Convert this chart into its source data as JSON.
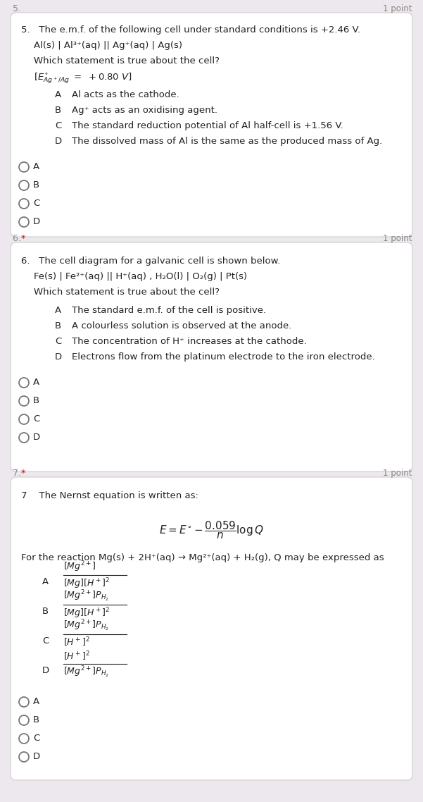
{
  "bg_outer": "#ede8ed",
  "bg_card": "#ffffff",
  "card_edge": "#d8d0d8",
  "text_dark": "#1a1a1a",
  "text_gray": "#888888",
  "red_star": "#cc0000",
  "q5": {
    "header_num": "5.",
    "header_pts": "1 point",
    "line1": "5.   The e.m.f. of the following cell under standard conditions is +2.46 V.",
    "line2": "Al(s) | Al³⁺(aq) || Ag⁺(aq) | Ag(s)",
    "line3": "Which statement is true about the cell?",
    "hint_math": "$[E^{\\circ}_{Ag^+/Ag}\\ =\\ +0.80\\ V]$",
    "opts": [
      [
        "A",
        "Al acts as the cathode."
      ],
      [
        "B",
        "Ag⁺ acts as an oxidising agent."
      ],
      [
        "C",
        "The standard reduction potential of Al half-cell is +1.56 V."
      ],
      [
        "D",
        "The dissolved mass of Al is the same as the produced mass of Ag."
      ]
    ]
  },
  "q6": {
    "header_num": "6.",
    "header_pts": "1 point",
    "star": "*",
    "line1": "6.   The cell diagram for a galvanic cell is shown below.",
    "line2": "Fe(s) | Fe²⁺(aq) || H⁺(aq) , H₂O(l) | O₂(g) | Pt(s)",
    "line3": "Which statement is true about the cell?",
    "opts": [
      [
        "A",
        "The standard e.m.f. of the cell is positive."
      ],
      [
        "B",
        "A colourless solution is observed at the anode."
      ],
      [
        "C",
        "The concentration of H⁺ increases at the cathode."
      ],
      [
        "D",
        "Electrons flow from the platinum electrode to the iron electrode."
      ]
    ]
  },
  "q7": {
    "header_num": "7.",
    "header_pts": "1 point",
    "star": "*",
    "line1": "7    The Nernst equation is written as:",
    "eq_math": "$E = E^{\\circ} - \\dfrac{0.059}{n}\\log Q$",
    "react": "For the reaction Mg(s) + 2H⁺(aq) → Mg²⁺(aq) + H₂(g), Q may be expressed as",
    "opts": [
      [
        "A",
        "$[Mg^{2+}]$",
        "$[Mg][H^+]^2$"
      ],
      [
        "B",
        "$[Mg^{2+}]P_{H_2}$",
        "$[Mg][H^+]^2$"
      ],
      [
        "C",
        "$[Mg^{2+}]P_{H_2}$",
        "$[H^+]^2$"
      ],
      [
        "D",
        "$[H^+]^2$",
        "$[Mg^{2+}]P_{H_2}$"
      ]
    ]
  }
}
